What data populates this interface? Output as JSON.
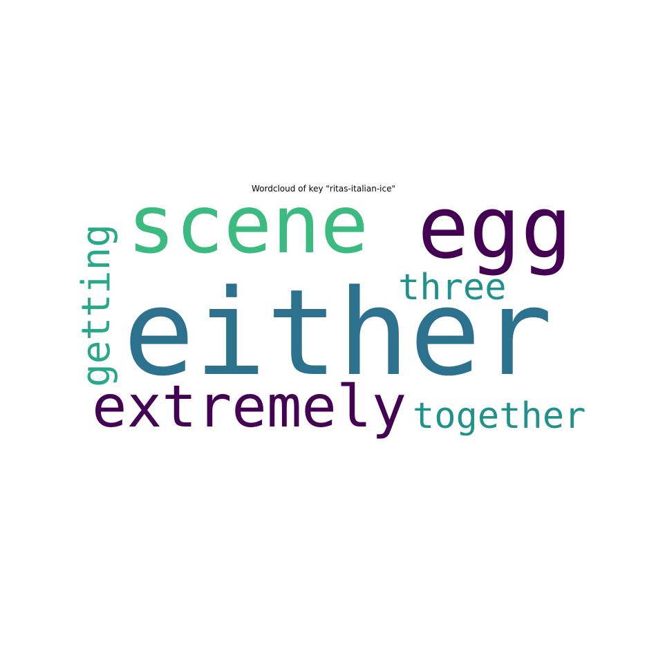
{
  "title": "Wordcloud of key \"ritas-italian-ice\"",
  "words": [
    {
      "text": "either",
      "color": "#2c728e"
    },
    {
      "text": "scene",
      "color": "#3bbb80"
    },
    {
      "text": "egg",
      "color": "#440154"
    },
    {
      "text": "extremely",
      "color": "#440154"
    },
    {
      "text": "three",
      "color": "#21918c"
    },
    {
      "text": "together",
      "color": "#21918c"
    },
    {
      "text": "getting",
      "color": "#2aa88a"
    }
  ]
}
